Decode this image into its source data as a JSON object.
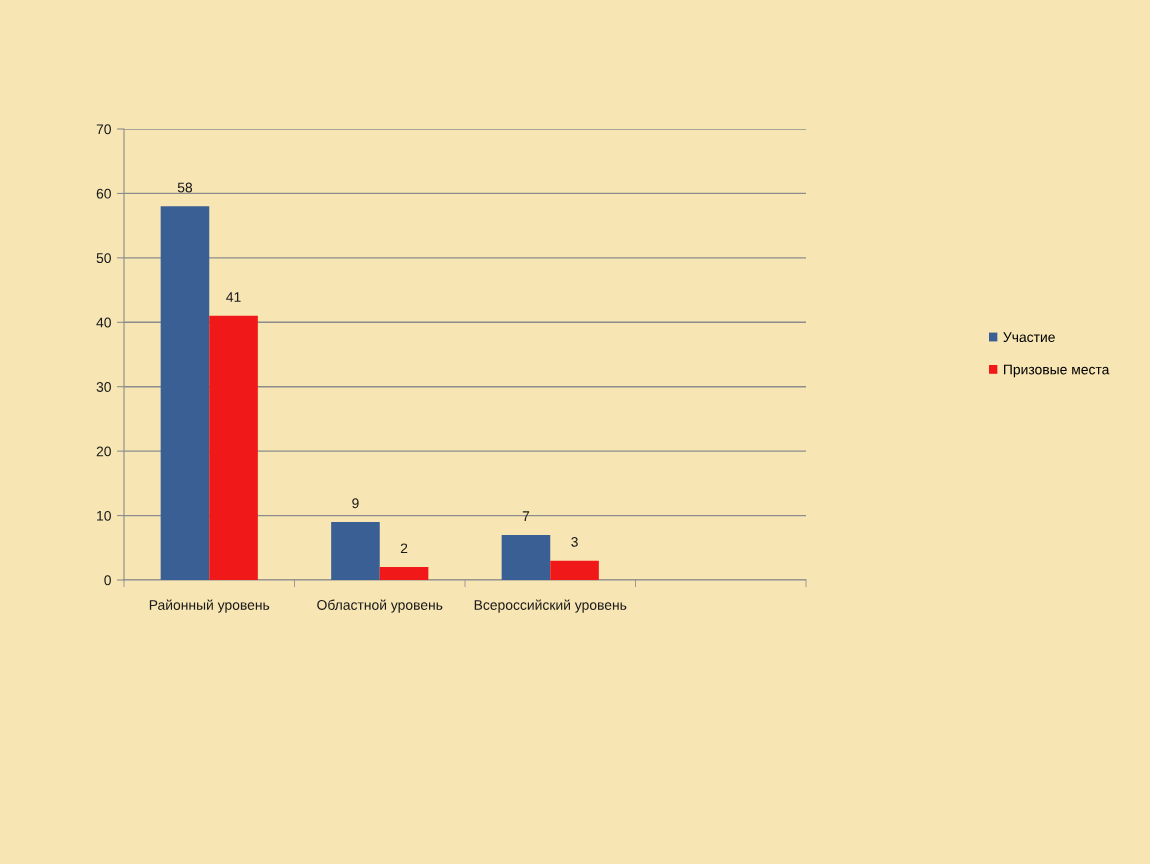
{
  "chart_data": {
    "type": "bar",
    "categories": [
      "Районный уровень",
      "Областной уровень",
      "Всероссийский уровень",
      null
    ],
    "series": [
      {
        "name": "Участие",
        "color": "#3a5f95",
        "values": [
          58,
          9,
          7,
          null
        ]
      },
      {
        "name": "Призовые места",
        "color": "#f01818",
        "values": [
          41,
          2,
          3,
          null
        ]
      }
    ],
    "ylim": [
      0,
      70
    ],
    "yticks": [
      0,
      10,
      20,
      30,
      40,
      50,
      60,
      70
    ],
    "grid": "y",
    "legend": "right",
    "data_labels": true
  }
}
